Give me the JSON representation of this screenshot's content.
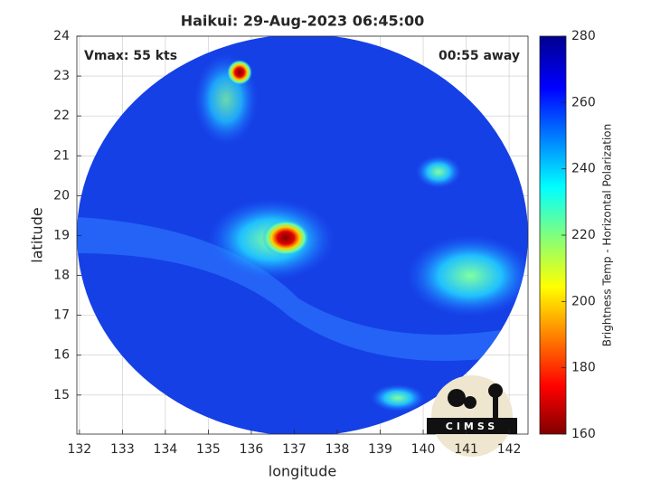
{
  "chart_data": {
    "type": "heatmap",
    "title": "Haikui: 29-Aug-2023 06:45:00",
    "annotations": [
      "Vmax: 55 kts",
      "00:55 away"
    ],
    "xlabel": "longitude",
    "ylabel": "latitude",
    "xlim": [
      131.94,
      142.44
    ],
    "xticks": [
      132,
      133,
      134,
      135,
      136,
      137,
      138,
      139,
      140,
      141,
      142
    ],
    "ylim": [
      14.02,
      24
    ],
    "yticks": [
      15,
      16,
      17,
      18,
      19,
      20,
      21,
      22,
      23,
      24
    ],
    "grid": true,
    "colorbar": {
      "label": "Brightness Temp - Horizontal Polarization",
      "lim": [
        160,
        280
      ],
      "ticks": [
        160,
        180,
        200,
        220,
        240,
        260,
        280
      ],
      "colormap": "jet"
    },
    "logo": "CIMSS"
  }
}
